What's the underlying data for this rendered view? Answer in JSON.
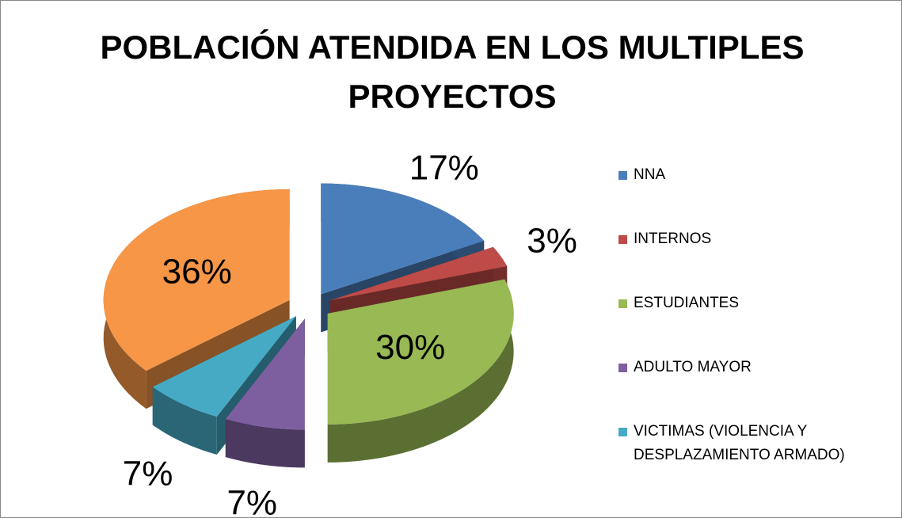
{
  "chart_data": {
    "type": "pie3d",
    "title": "POBLACIÓN ATENDIDA EN LOS MULTIPLES PROYECTOS",
    "categories": [
      "NNA",
      "INTERNOS",
      "ESTUDIANTES",
      "ADULTO MAYOR",
      "VICTIMAS (VIOLENCIA Y DESPLAZAMIENTO ARMADO)",
      null
    ],
    "values": [
      17,
      3,
      30,
      7,
      7,
      36
    ],
    "value_labels": [
      "17%",
      "3%",
      "30%",
      "7%",
      "7%",
      "36%"
    ],
    "colors": [
      "#4a7ebb",
      "#be4b48",
      "#98b954",
      "#7d5fa0",
      "#46aac5",
      "#f79646"
    ],
    "legend": "right"
  }
}
